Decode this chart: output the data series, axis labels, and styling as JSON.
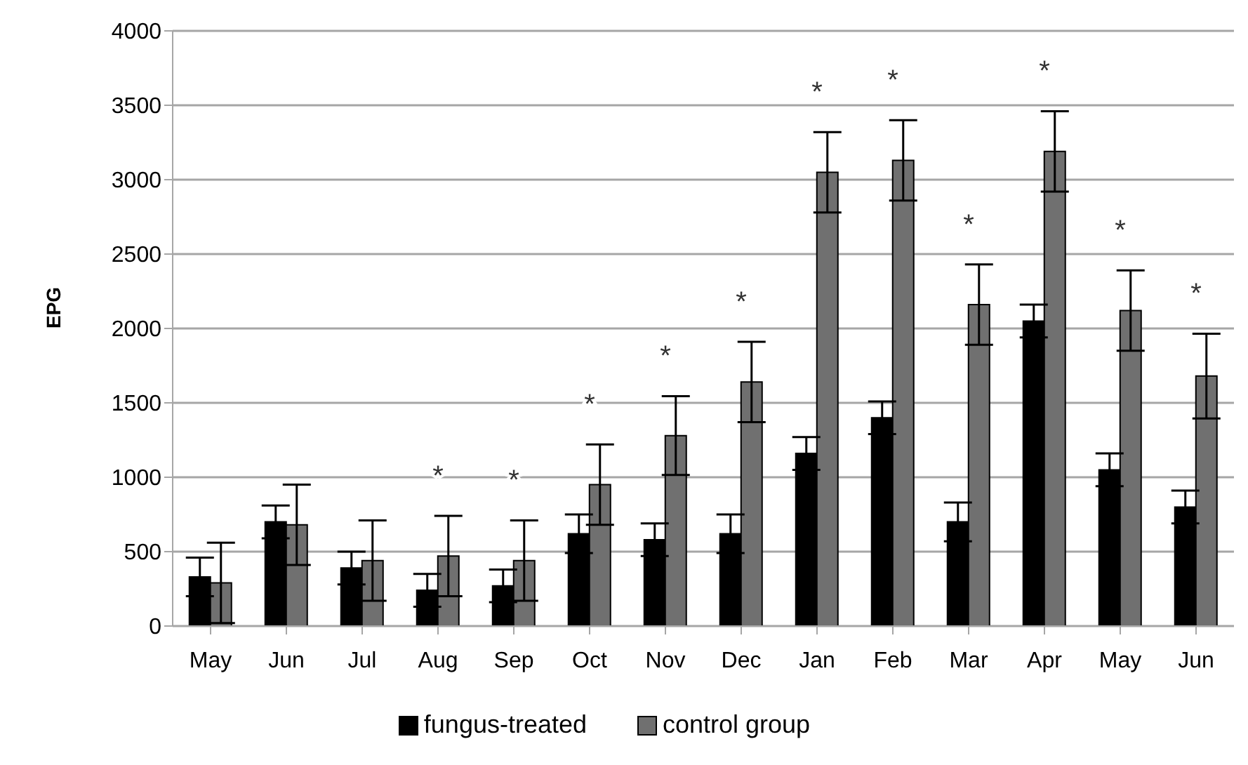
{
  "chart_data": {
    "type": "bar",
    "ylabel": "EPG",
    "categories": [
      "May",
      "Jun",
      "Jul",
      "Aug",
      "Sep",
      "Oct",
      "Nov",
      "Dec",
      "Jan",
      "Feb",
      "Mar",
      "Apr",
      "May",
      "Jun"
    ],
    "series": [
      {
        "name": "fungus-treated",
        "color": "#000000",
        "values": [
          330,
          700,
          390,
          240,
          270,
          620,
          580,
          620,
          1160,
          1400,
          700,
          2050,
          1050,
          800
        ],
        "errors": [
          130,
          110,
          110,
          110,
          110,
          130,
          110,
          130,
          110,
          110,
          130,
          110,
          110,
          110
        ]
      },
      {
        "name": "control group",
        "color": "#707070",
        "values": [
          290,
          680,
          440,
          470,
          440,
          950,
          1280,
          1640,
          3050,
          3130,
          2160,
          3190,
          2120,
          1680
        ],
        "errors": [
          270,
          270,
          270,
          270,
          270,
          270,
          265,
          270,
          270,
          270,
          270,
          270,
          270,
          285
        ]
      }
    ],
    "ylim": [
      0,
      4000
    ],
    "yticks": [
      0,
      500,
      1000,
      1500,
      2000,
      2500,
      3000,
      3500,
      4000
    ],
    "grid": "y",
    "legend": "bottom",
    "annotations": [
      "*",
      "*",
      "*",
      "*",
      "*",
      "*",
      "*",
      "*",
      "*",
      "*",
      "*"
    ]
  }
}
